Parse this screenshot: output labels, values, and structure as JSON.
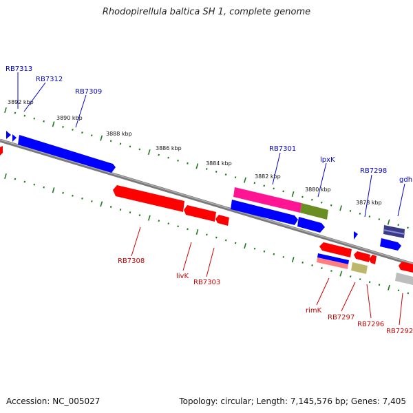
{
  "title": "Rhodopirellula baltica SH 1, complete genome",
  "accession": "Accession: NC_005027",
  "topology": "Topology: circular; Length: 7,145,576 bp; Genes: 7,405",
  "kbp_labels": [
    "3892 kbp",
    "3890 kbp",
    "3888 kbp",
    "3886 kbp",
    "3884 kbp",
    "3882 kbp",
    "3880 kbp",
    "3878 kbp"
  ],
  "forward_genes": [
    "RB7313",
    "RB7312",
    "RB7309",
    "RB7301",
    "lpxK",
    "RB7298",
    "gdh"
  ],
  "reverse_genes": [
    "RB7308",
    "livK",
    "RB7303",
    "rimK",
    "RB7297",
    "RB7296",
    "RB7292"
  ],
  "colors": {
    "forward": "#0000ff",
    "reverse": "#ff0000",
    "magenta": "#ff1493",
    "olive": "#6b8e23",
    "khaki": "#bdb76b",
    "grey": "#bdbdbd",
    "backbone": "#808080",
    "tick": "#1a7a1a"
  }
}
